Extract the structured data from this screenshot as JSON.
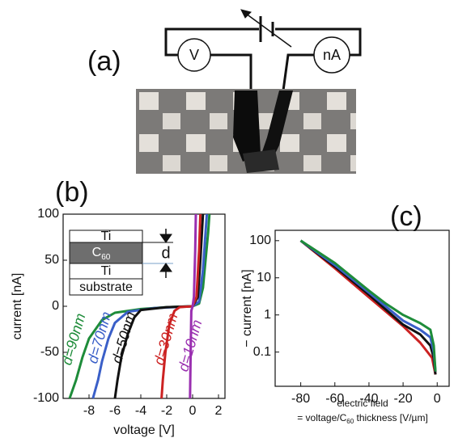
{
  "panel_labels": [
    "(a)",
    "(b)",
    "(c)"
  ],
  "diagram": {
    "voltmeter": "V",
    "ammeter": "nA"
  },
  "chart_data": [
    {
      "type": "line",
      "xlabel": "voltage [V]",
      "ylabel": "current [nA]",
      "xlim": [
        -10,
        2.5
      ],
      "ylim": [
        -100,
        100
      ],
      "xticks": [
        -8,
        -6,
        -4,
        -2,
        0,
        2
      ],
      "yticks": [
        -100,
        -50,
        0,
        50,
        100
      ],
      "log_y": false,
      "grid": false,
      "series": [
        {
          "name": "d=90nm",
          "color": "#1e8c3a",
          "x": [
            -9.5,
            -9,
            -8.5,
            -8,
            -7,
            -6,
            -4,
            -2,
            0,
            0.5,
            0.8,
            1.0,
            1.2,
            1.3
          ],
          "values": [
            -100,
            -80,
            -55,
            -35,
            -15,
            -7,
            -3,
            -1,
            0,
            3,
            20,
            50,
            80,
            100
          ]
        },
        {
          "name": "d=70nm",
          "color": "#3a5fc8",
          "x": [
            -7.7,
            -7.3,
            -7,
            -6.5,
            -6,
            -5,
            -3,
            0,
            0.5,
            0.8,
            1.0,
            1.1
          ],
          "values": [
            -100,
            -80,
            -60,
            -35,
            -18,
            -6,
            -2,
            0,
            5,
            40,
            80,
            100
          ]
        },
        {
          "name": "d=50nm",
          "color": "#111111",
          "x": [
            -6,
            -5.8,
            -5.5,
            -5,
            -4.5,
            -4,
            -2,
            0,
            0.4,
            0.6,
            0.8
          ],
          "values": [
            -100,
            -80,
            -55,
            -30,
            -12,
            -4,
            -1,
            0,
            10,
            50,
            100
          ]
        },
        {
          "name": "d=30nm",
          "color": "#cc2222",
          "x": [
            -2.4,
            -2.3,
            -2.1,
            -1.8,
            -1.4,
            -1,
            0,
            0.3,
            0.5,
            0.6
          ],
          "values": [
            -100,
            -80,
            -50,
            -20,
            -5,
            -1,
            0,
            10,
            60,
            100
          ]
        },
        {
          "name": "d=10nm",
          "color": "#9a2fb0",
          "x": [
            -0.2,
            -0.15,
            -0.1,
            0,
            0.1,
            0.2,
            0.25
          ],
          "values": [
            -100,
            -50,
            -5,
            0,
            10,
            60,
            100
          ]
        }
      ],
      "inset": {
        "layers": [
          "Ti",
          "C",
          "Ti",
          "substrate"
        ],
        "c60_subscript": "60",
        "thickness_label": "d"
      }
    },
    {
      "type": "line",
      "ylabel": "− current [nA]",
      "xlabel_lines": [
        "electric field",
        "= voltage/C",
        "60",
        " thickness [V/µm]"
      ],
      "xlim": [
        -95,
        7
      ],
      "ylim": [
        0.012,
        190
      ],
      "xticks": [
        -80,
        -60,
        -40,
        -20,
        0
      ],
      "yticks": [
        0.1,
        1,
        10,
        100
      ],
      "log_y": true,
      "grid": false,
      "series": [
        {
          "color": "#cc2222",
          "x": [
            -80,
            -60,
            -40,
            -20,
            -10,
            -3,
            -1
          ],
          "values": [
            100,
            18,
            3,
            0.5,
            0.18,
            0.07,
            0.025
          ]
        },
        {
          "color": "#111111",
          "x": [
            -80,
            -60,
            -40,
            -20,
            -10,
            -4,
            -2,
            -1
          ],
          "values": [
            100,
            20,
            3.5,
            0.55,
            0.3,
            0.15,
            0.07,
            0.025
          ]
        },
        {
          "color": "#3a5fc8",
          "x": [
            -80,
            -60,
            -40,
            -20,
            -10,
            -4,
            -2,
            -1
          ],
          "values": [
            100,
            22,
            4,
            0.7,
            0.4,
            0.25,
            0.1,
            0.03
          ]
        },
        {
          "color": "#1e8c3a",
          "x": [
            -80,
            -60,
            -40,
            -30,
            -20,
            -10,
            -4,
            -2,
            -1
          ],
          "values": [
            100,
            25,
            4.5,
            2,
            1,
            0.6,
            0.4,
            0.15,
            0.03
          ]
        }
      ]
    }
  ]
}
